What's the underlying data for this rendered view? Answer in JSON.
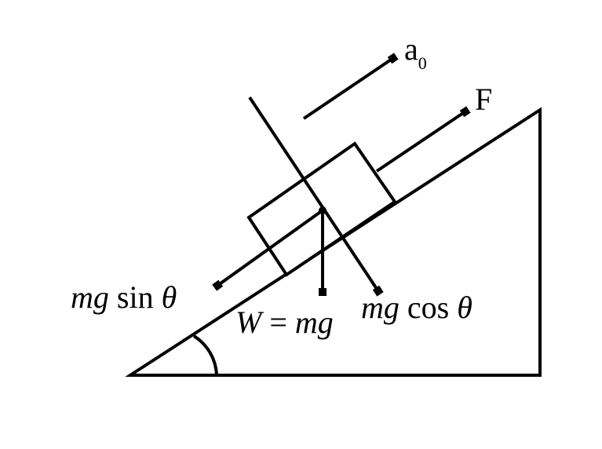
{
  "labels": {
    "acceleration": "a",
    "acceleration_sub": "0",
    "force": "F",
    "parallel_component_mg": "mg",
    "parallel_component_fn": " sin ",
    "parallel_component_theta": "θ",
    "weight_W": "W",
    "weight_eq": " = ",
    "weight_mg": "mg",
    "normal_component_mg": "mg",
    "normal_component_fn": " cos ",
    "normal_component_theta": "θ"
  },
  "colors": {
    "stroke": "#000000",
    "background": "#ffffff"
  }
}
